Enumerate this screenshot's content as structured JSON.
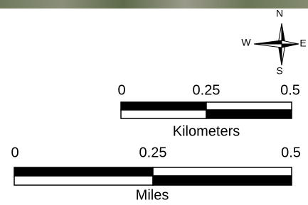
{
  "compass": {
    "north": "N",
    "east": "E",
    "south": "S",
    "west": "W"
  },
  "scale_bars": [
    {
      "labels": [
        "0",
        "0.25",
        "0.5"
      ],
      "unit": "Kilometers"
    },
    {
      "labels": [
        "0",
        "0.25",
        "0.5"
      ],
      "unit": "Miles"
    }
  ]
}
